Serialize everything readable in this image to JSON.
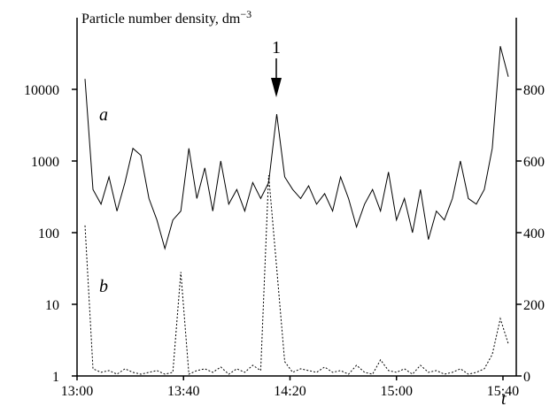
{
  "chart_data": {
    "type": "line",
    "y_label": "Particle number density, dm",
    "y_label_exponent": "−3",
    "x_label": "t",
    "annotations": [
      "a",
      "b",
      "1"
    ],
    "x": [
      "13:03",
      "13:06",
      "13:09",
      "13:12",
      "13:15",
      "13:18",
      "13:21",
      "13:24",
      "13:27",
      "13:30",
      "13:33",
      "13:36",
      "13:39",
      "13:42",
      "13:45",
      "13:48",
      "13:51",
      "13:54",
      "13:57",
      "14:00",
      "14:03",
      "14:06",
      "14:09",
      "14:12",
      "14:15",
      "14:18",
      "14:21",
      "14:24",
      "14:27",
      "14:30",
      "14:33",
      "14:36",
      "14:39",
      "14:42",
      "14:45",
      "14:48",
      "14:51",
      "14:54",
      "14:57",
      "15:00",
      "15:03",
      "15:06",
      "15:09",
      "15:12",
      "15:15",
      "15:18",
      "15:21",
      "15:24",
      "15:27",
      "15:30",
      "15:33",
      "15:36",
      "15:39",
      "15:42"
    ],
    "series": [
      {
        "name": "a",
        "color": "#000000",
        "dash": "solid",
        "axis": "y",
        "values": [
          14000,
          400,
          250,
          600,
          200,
          500,
          1500,
          1200,
          300,
          150,
          60,
          150,
          200,
          1500,
          300,
          800,
          200,
          1000,
          250,
          400,
          200,
          500,
          300,
          500,
          4500,
          600,
          400,
          300,
          450,
          250,
          350,
          200,
          600,
          300,
          120,
          250,
          400,
          200,
          700,
          150,
          300,
          100,
          400,
          80,
          200,
          150,
          300,
          1000,
          300,
          250,
          400,
          1500,
          40000,
          15000
        ]
      },
      {
        "name": "b",
        "color": "#000000",
        "dash": "dotted",
        "axis": "y2",
        "values": [
          420,
          20,
          10,
          15,
          5,
          20,
          10,
          5,
          10,
          15,
          5,
          10,
          290,
          5,
          15,
          20,
          10,
          25,
          5,
          20,
          10,
          30,
          15,
          560,
          300,
          40,
          10,
          20,
          15,
          10,
          25,
          10,
          15,
          5,
          30,
          10,
          5,
          45,
          15,
          10,
          20,
          5,
          30,
          10,
          15,
          5,
          10,
          20,
          5,
          10,
          20,
          60,
          160,
          90
        ]
      }
    ],
    "xlim": [
      "13:00",
      "15:45"
    ],
    "xticks": [
      "13:00",
      "13:40",
      "14:20",
      "15:00",
      "15:40"
    ],
    "ylog": true,
    "ylim": [
      1,
      100000
    ],
    "yticks": [
      1,
      10,
      100,
      1000,
      10000
    ],
    "y2lim": [
      0,
      1000
    ],
    "y2ticks": [
      0,
      200,
      400,
      600,
      800
    ]
  }
}
